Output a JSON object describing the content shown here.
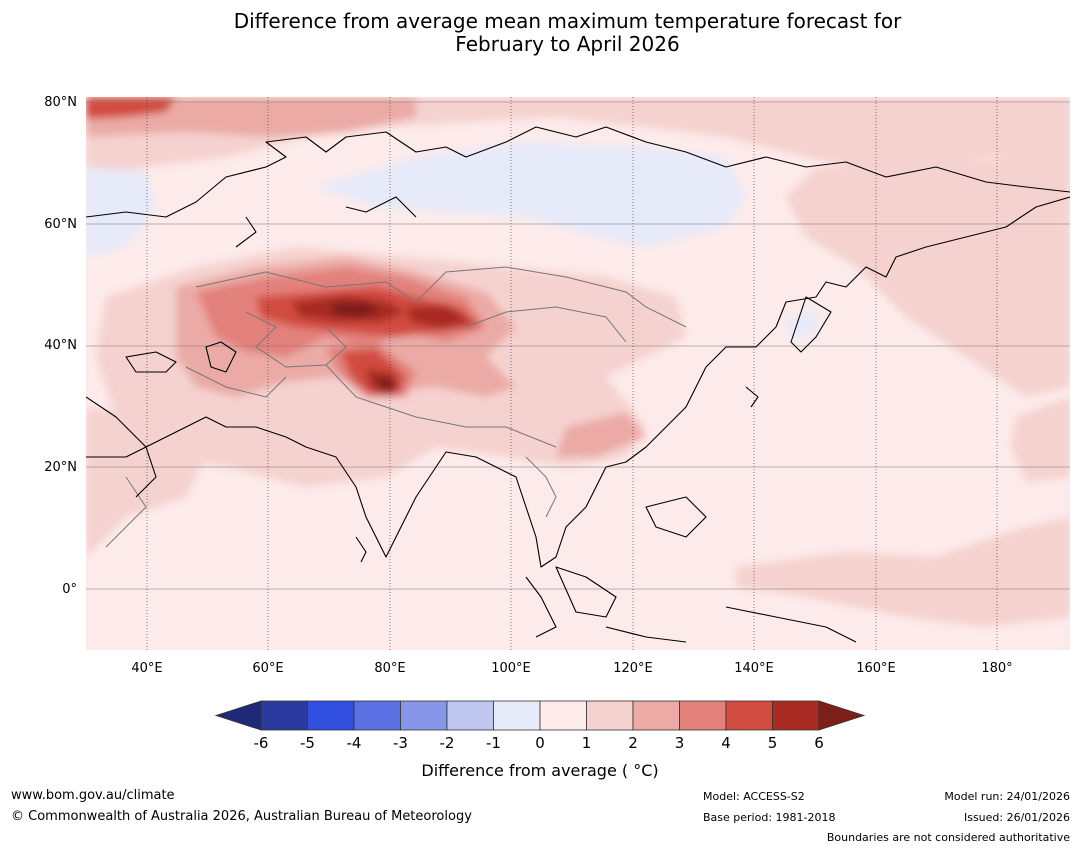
{
  "title": {
    "line1": "Difference from average mean maximum temperature forecast for",
    "line2": "February to April 2026"
  },
  "map": {
    "region": "Asia",
    "latitude_labels": [
      "80°N",
      "60°N",
      "40°N",
      "20°N",
      "0°"
    ],
    "longitude_labels": [
      "40°E",
      "60°E",
      "80°E",
      "100°E",
      "120°E",
      "140°E",
      "160°E",
      "180°"
    ],
    "anomaly_areas": [
      {
        "region": "Central Asia (Kazakhstan / Xinjiang)",
        "anomaly": "4 to 6 °C above average"
      },
      {
        "region": "Western Tibetan Plateau",
        "anomaly": "4 to 6 °C above average"
      },
      {
        "region": "Arctic coast north of Scandinavia",
        "anomaly": "3 to 5 °C above average"
      },
      {
        "region": "Central Siberia",
        "anomaly": "0 to 1 °C below average"
      },
      {
        "region": "Most of Asia",
        "anomaly": "0 to 2 °C above average"
      }
    ]
  },
  "colorbar": {
    "ticks": [
      "-6",
      "-5",
      "-4",
      "-3",
      "-2",
      "-1",
      "0",
      "1",
      "2",
      "3",
      "4",
      "5",
      "6"
    ],
    "colors": [
      "#2b3a9f",
      "#3150e0",
      "#5b70e3",
      "#8796e8",
      "#bfc7f1",
      "#e7eaf9",
      "#fcebea",
      "#f5d2cf",
      "#ebaaa5",
      "#e3817b",
      "#d24c41",
      "#a92b24"
    ],
    "low_extend_color": "#1e2a78",
    "high_extend_color": "#7c1f1b",
    "label": "Difference from average ( °C)"
  },
  "footer": {
    "website": "www.bom.gov.au/climate",
    "copyright": "© Commonwealth of Australia 2026, Australian Bureau of Meteorology",
    "model": "Model: ACCESS-S2",
    "base_period": "Base period: 1981-2018",
    "model_run": "Model run: 24/01/2026",
    "issued": "Issued: 26/01/2026",
    "disclaimer": "Boundaries are not considered authoritative"
  }
}
